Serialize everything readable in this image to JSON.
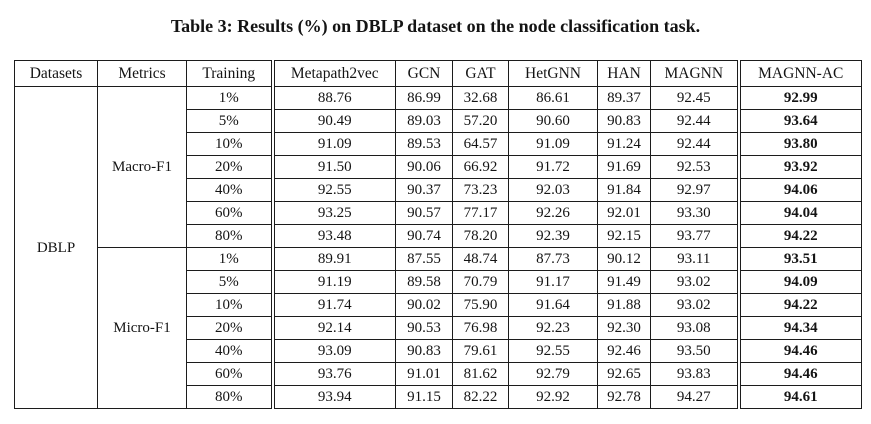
{
  "title": "Table 3: Results (%) on DBLP dataset on the node classification task.",
  "chart_data": {
    "type": "table",
    "headers": [
      "Datasets",
      "Metrics",
      "Training",
      "Metapath2vec",
      "GCN",
      "GAT",
      "HetGNN",
      "HAN",
      "MAGNN",
      "MAGNN-AC"
    ],
    "dataset": "DBLP",
    "bold_column": "MAGNN-AC",
    "double_rule_before_columns": [
      "Metapath2vec",
      "MAGNN-AC"
    ],
    "groups": [
      {
        "metric": "Macro-F1",
        "rows": [
          {
            "training": "1%",
            "values": [
              "88.76",
              "86.99",
              "32.68",
              "86.61",
              "89.37",
              "92.45",
              "92.99"
            ]
          },
          {
            "training": "5%",
            "values": [
              "90.49",
              "89.03",
              "57.20",
              "90.60",
              "90.83",
              "92.44",
              "93.64"
            ]
          },
          {
            "training": "10%",
            "values": [
              "91.09",
              "89.53",
              "64.57",
              "91.09",
              "91.24",
              "92.44",
              "93.80"
            ]
          },
          {
            "training": "20%",
            "values": [
              "91.50",
              "90.06",
              "66.92",
              "91.72",
              "91.69",
              "92.53",
              "93.92"
            ]
          },
          {
            "training": "40%",
            "values": [
              "92.55",
              "90.37",
              "73.23",
              "92.03",
              "91.84",
              "92.97",
              "94.06"
            ]
          },
          {
            "training": "60%",
            "values": [
              "93.25",
              "90.57",
              "77.17",
              "92.26",
              "92.01",
              "93.30",
              "94.04"
            ]
          },
          {
            "training": "80%",
            "values": [
              "93.48",
              "90.74",
              "78.20",
              "92.39",
              "92.15",
              "93.77",
              "94.22"
            ]
          }
        ]
      },
      {
        "metric": "Micro-F1",
        "rows": [
          {
            "training": "1%",
            "values": [
              "89.91",
              "87.55",
              "48.74",
              "87.73",
              "90.12",
              "93.11",
              "93.51"
            ]
          },
          {
            "training": "5%",
            "values": [
              "91.19",
              "89.58",
              "70.79",
              "91.17",
              "91.49",
              "93.02",
              "94.09"
            ]
          },
          {
            "training": "10%",
            "values": [
              "91.74",
              "90.02",
              "75.90",
              "91.64",
              "91.88",
              "93.02",
              "94.22"
            ]
          },
          {
            "training": "20%",
            "values": [
              "92.14",
              "90.53",
              "76.98",
              "92.23",
              "92.30",
              "93.08",
              "94.34"
            ]
          },
          {
            "training": "40%",
            "values": [
              "93.09",
              "90.83",
              "79.61",
              "92.55",
              "92.46",
              "93.50",
              "94.46"
            ]
          },
          {
            "training": "60%",
            "values": [
              "93.76",
              "91.01",
              "81.62",
              "92.79",
              "92.65",
              "93.83",
              "94.46"
            ]
          },
          {
            "training": "80%",
            "values": [
              "93.94",
              "91.15",
              "82.22",
              "92.92",
              "92.78",
              "94.27",
              "94.61"
            ]
          }
        ]
      }
    ]
  }
}
